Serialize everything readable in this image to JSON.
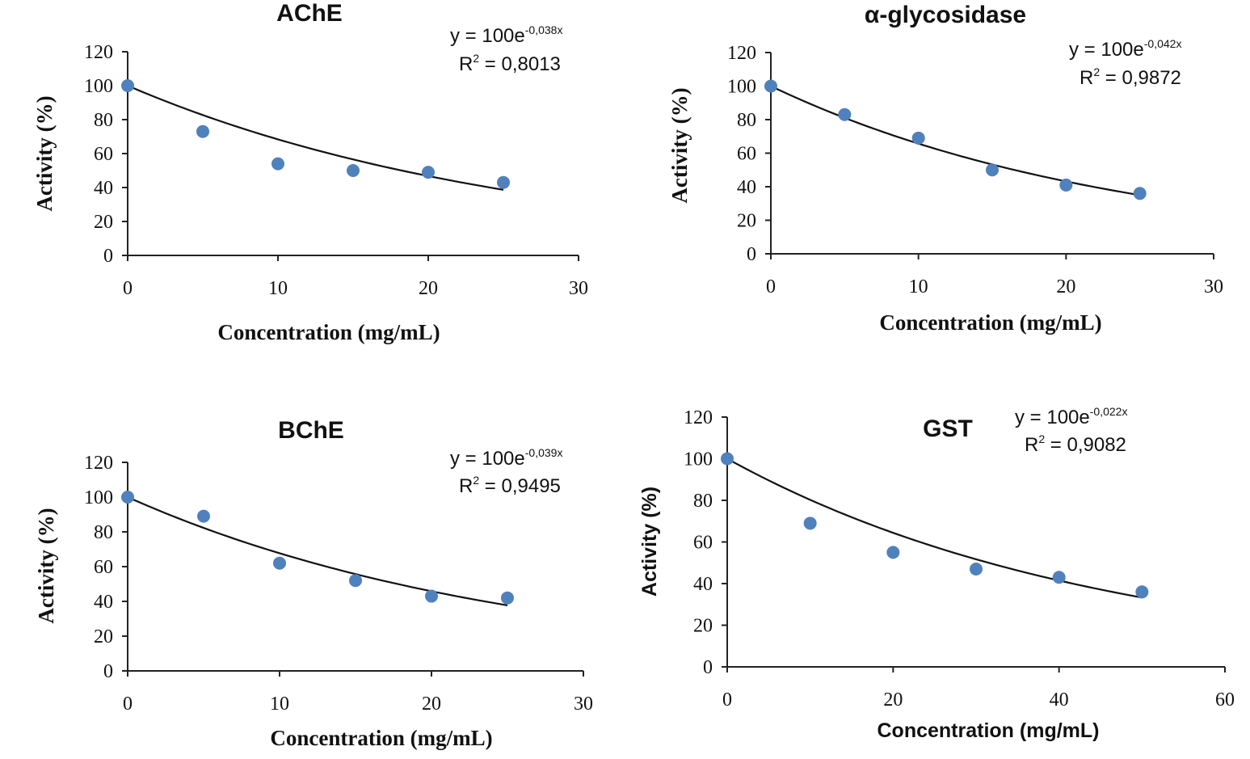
{
  "chart_data": [
    {
      "type": "scatter",
      "title": "AChE",
      "xlabel": "Concentration (mg/mL)",
      "ylabel": "Activity (%)",
      "xlim": [
        0,
        30
      ],
      "ylim": [
        0,
        120
      ],
      "xticks": [
        "0",
        "10",
        "20",
        "30"
      ],
      "yticks": [
        "0",
        "20",
        "40",
        "60",
        "80",
        "100",
        "120"
      ],
      "x": [
        0,
        5,
        10,
        15,
        20,
        25
      ],
      "y": [
        100,
        73,
        54,
        50,
        49,
        43
      ],
      "trendline": {
        "type": "exponential",
        "a": 100,
        "b": -0.038,
        "x_range": [
          0,
          25
        ]
      },
      "equation": {
        "prefix": "y = 100e",
        "exponent": "-0,038x"
      },
      "r2": {
        "prefix": "R",
        "sup": "2",
        "value": " = 0,8013"
      },
      "accent": "#4f81bd"
    },
    {
      "type": "scatter",
      "title": "α-glycosidase",
      "xlabel": "Concentration (mg/mL)",
      "ylabel": "Activity (%)",
      "xlim": [
        0,
        30
      ],
      "ylim": [
        0,
        120
      ],
      "xticks": [
        "0",
        "10",
        "20",
        "30"
      ],
      "yticks": [
        "0",
        "20",
        "40",
        "60",
        "80",
        "100",
        "120"
      ],
      "x": [
        0,
        5,
        10,
        15,
        20,
        25
      ],
      "y": [
        100,
        83,
        69,
        50,
        41,
        36
      ],
      "trendline": {
        "type": "exponential",
        "a": 100,
        "b": -0.042,
        "x_range": [
          0,
          25
        ]
      },
      "equation": {
        "prefix": "y = 100e",
        "exponent": "-0,042x"
      },
      "r2": {
        "prefix": "R",
        "sup": "2",
        "value": " = 0,9872"
      },
      "accent": "#4f81bd"
    },
    {
      "type": "scatter",
      "title": "BChE",
      "xlabel": "Concentration (mg/mL)",
      "ylabel": "Activity (%)",
      "xlim": [
        0,
        30
      ],
      "ylim": [
        0,
        120
      ],
      "xticks": [
        "0",
        "10",
        "20",
        "30"
      ],
      "yticks": [
        "0",
        "20",
        "40",
        "60",
        "80",
        "100",
        "120"
      ],
      "x": [
        0,
        5,
        10,
        15,
        20,
        25
      ],
      "y": [
        100,
        89,
        62,
        52,
        43,
        42
      ],
      "trendline": {
        "type": "exponential",
        "a": 100,
        "b": -0.039,
        "x_range": [
          0,
          25
        ]
      },
      "equation": {
        "prefix": "y = 100e",
        "exponent": "-0,039x"
      },
      "r2": {
        "prefix": "R",
        "sup": "2",
        "value": " = 0,9495"
      },
      "accent": "#4f81bd"
    },
    {
      "type": "scatter",
      "title": "GST",
      "xlabel": "Concentration (mg/mL)",
      "ylabel": "Activity (%)",
      "xlim": [
        0,
        60
      ],
      "ylim": [
        0,
        120
      ],
      "xticks": [
        "0",
        "20",
        "40",
        "60"
      ],
      "yticks": [
        "0",
        "20",
        "40",
        "60",
        "80",
        "100",
        "120"
      ],
      "x": [
        0,
        10,
        20,
        30,
        40,
        50
      ],
      "y": [
        100,
        69,
        55,
        47,
        43,
        36
      ],
      "trendline": {
        "type": "exponential",
        "a": 100,
        "b": -0.022,
        "x_range": [
          0,
          50
        ]
      },
      "equation": {
        "prefix": "y = 100e",
        "exponent": "-0,022x"
      },
      "r2": {
        "prefix": "R",
        "sup": "2",
        "value": " = 0,9082"
      },
      "accent": "#4f81bd"
    }
  ]
}
